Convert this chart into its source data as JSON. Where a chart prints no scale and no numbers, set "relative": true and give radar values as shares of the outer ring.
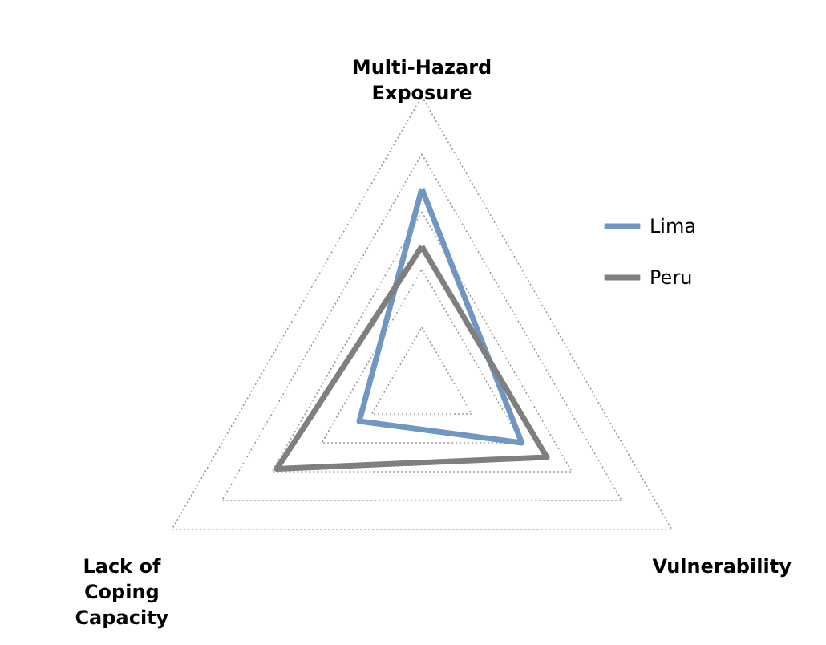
{
  "chart_data": {
    "type": "radar",
    "relative": true,
    "grid": true,
    "legend": "right",
    "marker": "none",
    "categories": [
      "Multi-Hazard\nExposure",
      "Vulnerability",
      "Lack of\nCoping\nCapacity"
    ],
    "series": [
      {
        "name": "Lima",
        "color": "#6f97c2",
        "values": [
          0.68,
          0.4,
          0.25
        ]
      },
      {
        "name": "Peru",
        "color": "#7f7f7f",
        "values": [
          0.48,
          0.5,
          0.58
        ]
      }
    ]
  }
}
